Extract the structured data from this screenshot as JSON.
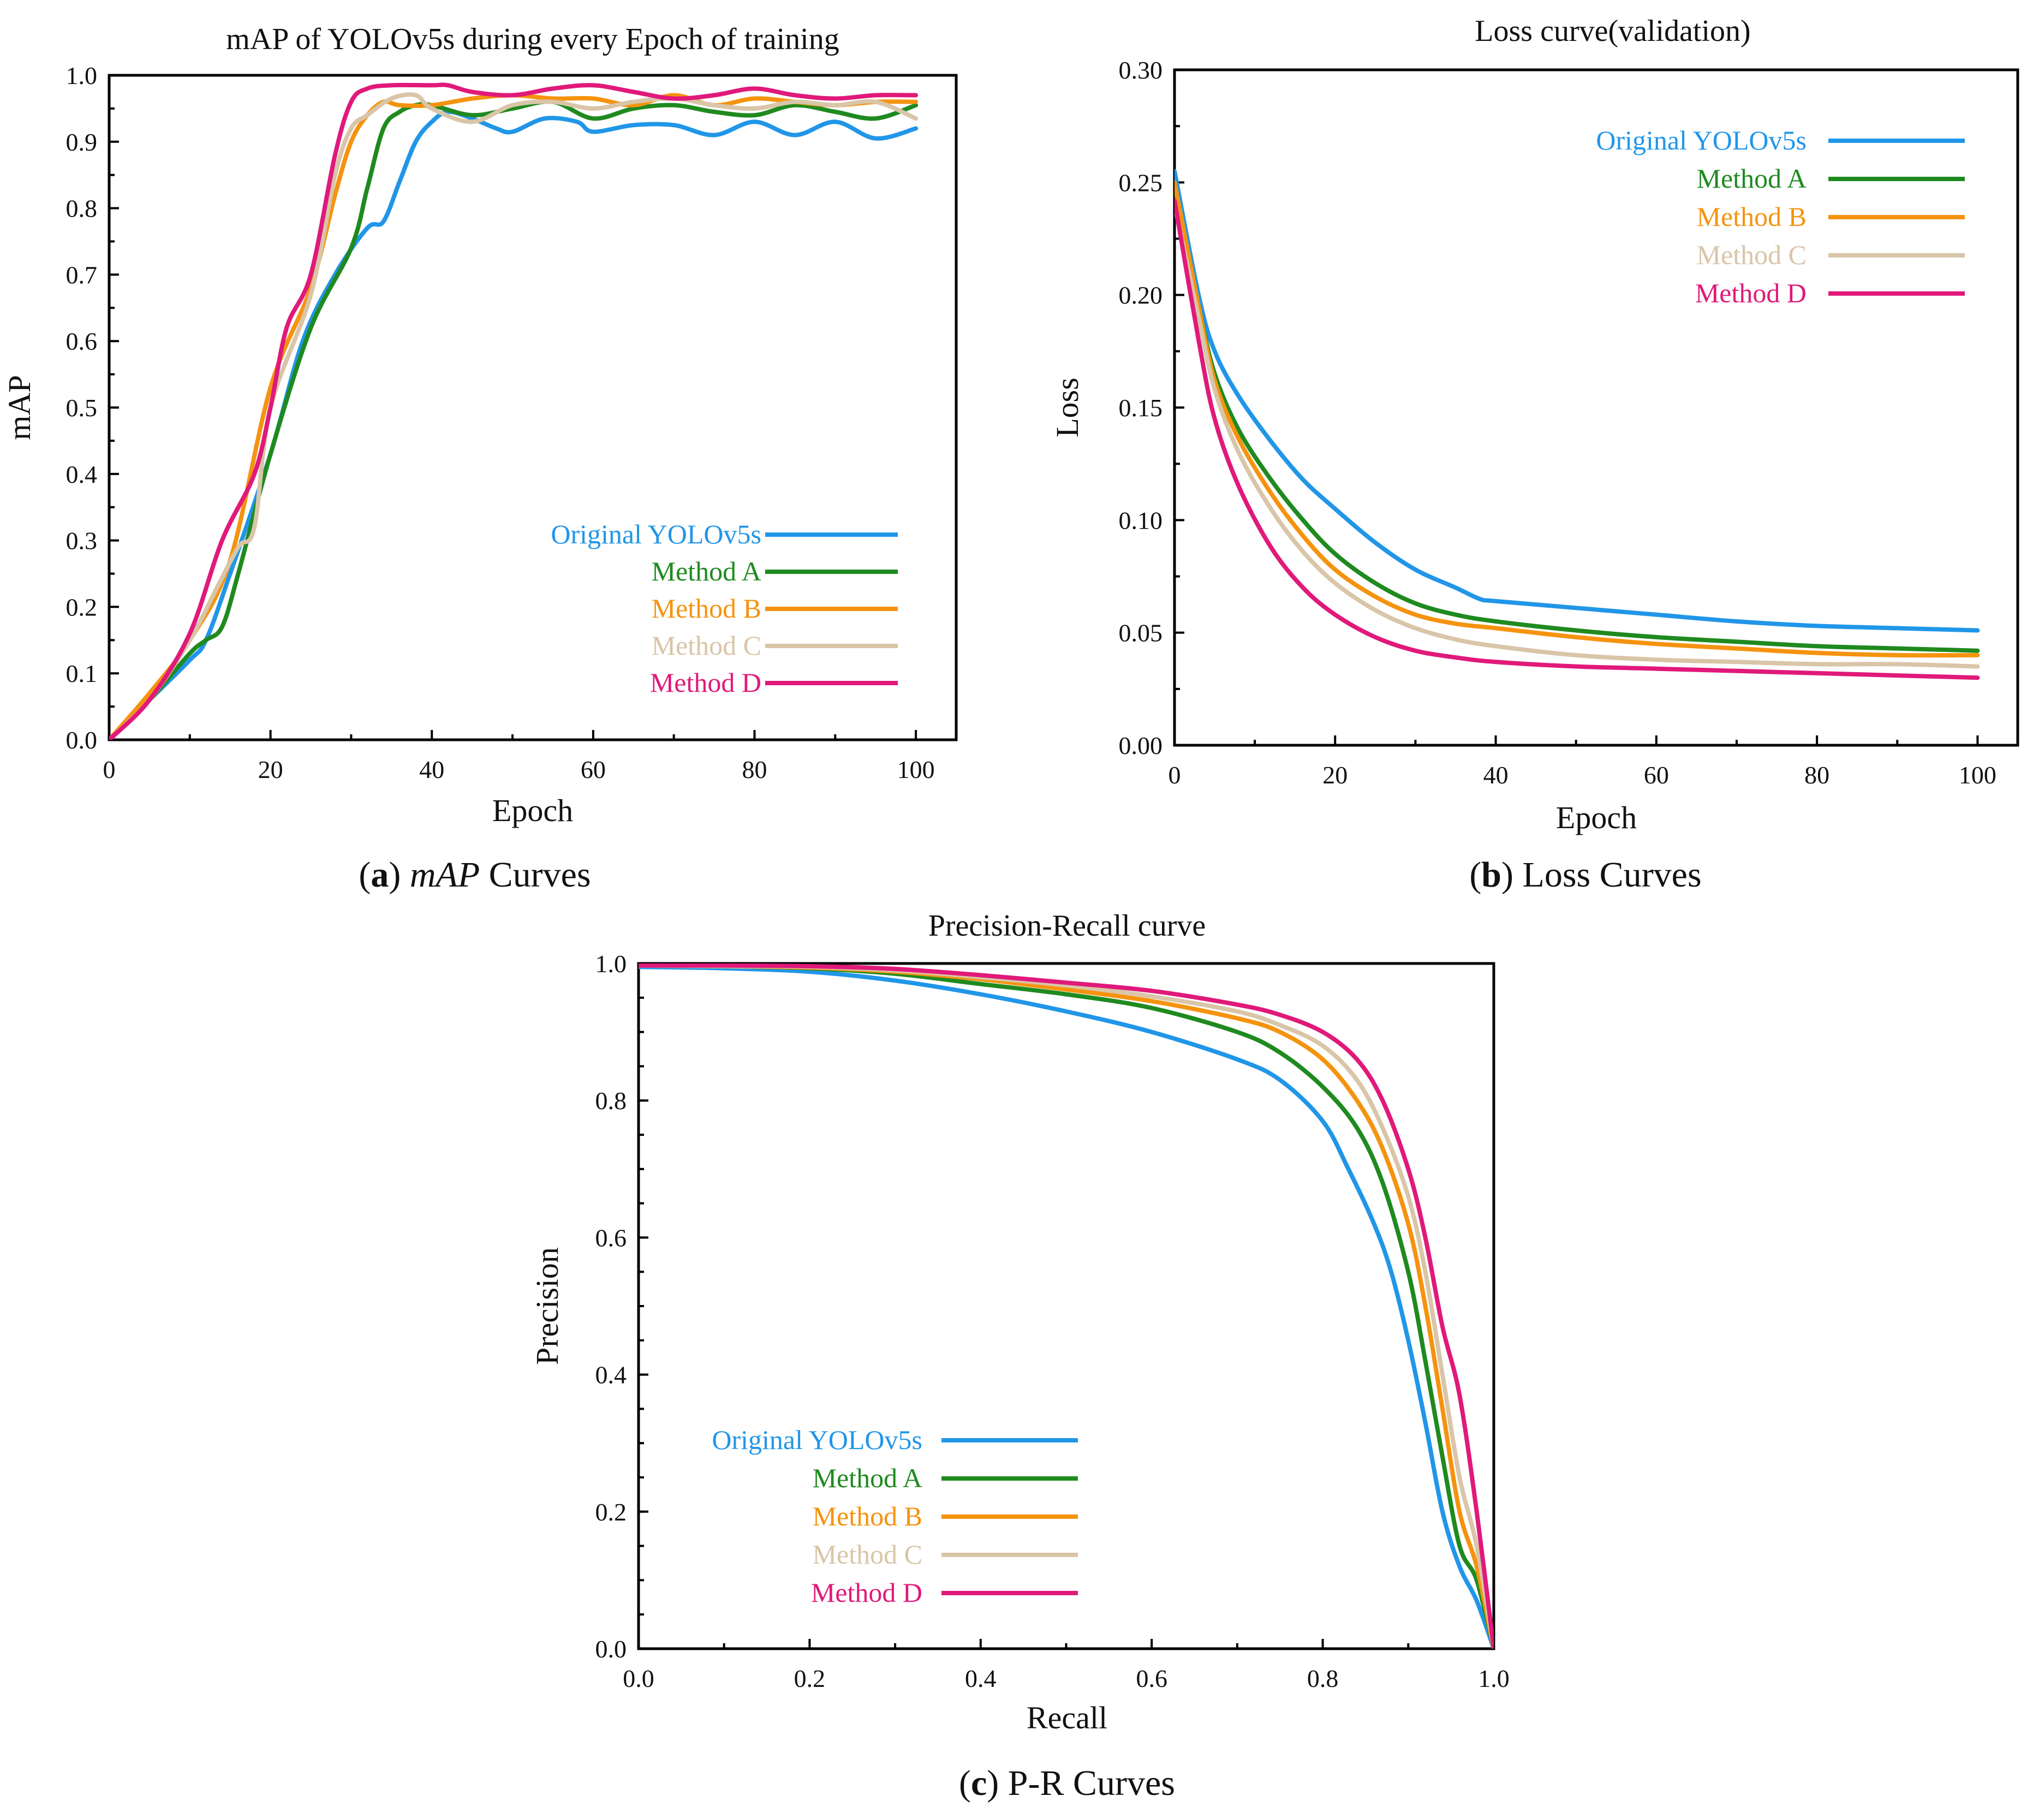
{
  "chart_data": [
    {
      "id": "map",
      "type": "line",
      "title": "mAP of YOLOv5s during every Epoch of training",
      "xlabel": "Epoch",
      "ylabel": "mAP",
      "xlim": [
        0,
        105
      ],
      "ylim": [
        0,
        1.0
      ],
      "xticks": [
        0,
        20,
        40,
        60,
        80,
        100
      ],
      "yticks": [
        0.0,
        0.1,
        0.2,
        0.3,
        0.4,
        0.5,
        0.6,
        0.7,
        0.8,
        0.9,
        1.0
      ],
      "tick_decimals_x": 0,
      "tick_decimals_y": 1,
      "legend_position": "bottom-right",
      "caption": {
        "letter": "a",
        "text": "mAP",
        "suffix": " Curves"
      },
      "series": [
        {
          "name": "Original YOLOv5s",
          "color": "#2196e8",
          "x": [
            0,
            5,
            10,
            12,
            15,
            20,
            24,
            28,
            32,
            34,
            36,
            38,
            40,
            42,
            45,
            48,
            50,
            54,
            58,
            60,
            65,
            70,
            75,
            80,
            85,
            90,
            95,
            100
          ],
          "y": [
            0,
            0.06,
            0.12,
            0.15,
            0.25,
            0.43,
            0.6,
            0.7,
            0.77,
            0.78,
            0.84,
            0.9,
            0.93,
            0.945,
            0.935,
            0.92,
            0.915,
            0.935,
            0.93,
            0.915,
            0.925,
            0.925,
            0.91,
            0.93,
            0.91,
            0.93,
            0.905,
            0.92
          ]
        },
        {
          "name": "Method A",
          "color": "#1f8a1f",
          "x": [
            0,
            5,
            10,
            12,
            14,
            16,
            20,
            25,
            30,
            32,
            34,
            36,
            38,
            40,
            45,
            50,
            55,
            60,
            65,
            70,
            75,
            80,
            85,
            90,
            95,
            100
          ],
          "y": [
            0,
            0.06,
            0.13,
            0.15,
            0.17,
            0.25,
            0.43,
            0.62,
            0.74,
            0.83,
            0.92,
            0.945,
            0.955,
            0.955,
            0.94,
            0.95,
            0.96,
            0.935,
            0.95,
            0.955,
            0.945,
            0.94,
            0.955,
            0.945,
            0.935,
            0.955
          ]
        },
        {
          "name": "Method B",
          "color": "#f5930f",
          "x": [
            0,
            5,
            10,
            15,
            20,
            25,
            28,
            30,
            32,
            34,
            36,
            40,
            45,
            50,
            55,
            60,
            65,
            70,
            75,
            80,
            85,
            90,
            95,
            100
          ],
          "y": [
            0,
            0.07,
            0.15,
            0.27,
            0.53,
            0.68,
            0.82,
            0.9,
            0.94,
            0.96,
            0.955,
            0.955,
            0.965,
            0.97,
            0.965,
            0.965,
            0.955,
            0.97,
            0.955,
            0.965,
            0.96,
            0.955,
            0.96,
            0.96
          ]
        },
        {
          "name": "Method C",
          "color": "#d9c5a8",
          "x": [
            0,
            5,
            10,
            13,
            16,
            18,
            20,
            25,
            28,
            30,
            32,
            35,
            38,
            40,
            45,
            50,
            55,
            60,
            65,
            70,
            75,
            80,
            85,
            90,
            95,
            100
          ],
          "y": [
            0,
            0.06,
            0.15,
            0.22,
            0.29,
            0.32,
            0.5,
            0.67,
            0.85,
            0.92,
            0.94,
            0.965,
            0.97,
            0.95,
            0.93,
            0.955,
            0.96,
            0.95,
            0.96,
            0.965,
            0.955,
            0.95,
            0.96,
            0.955,
            0.96,
            0.935
          ]
        },
        {
          "name": "Method D",
          "color": "#e0197a",
          "x": [
            0,
            5,
            10,
            14,
            18,
            20,
            22,
            25,
            28,
            30,
            32,
            35,
            40,
            42,
            45,
            50,
            55,
            60,
            65,
            70,
            75,
            80,
            85,
            90,
            95,
            100
          ],
          "y": [
            0,
            0.06,
            0.16,
            0.3,
            0.4,
            0.5,
            0.62,
            0.7,
            0.88,
            0.96,
            0.98,
            0.985,
            0.985,
            0.985,
            0.975,
            0.97,
            0.98,
            0.985,
            0.975,
            0.965,
            0.97,
            0.98,
            0.97,
            0.965,
            0.97,
            0.97
          ]
        }
      ]
    },
    {
      "id": "loss",
      "type": "line",
      "title": "Loss curve(validation)",
      "xlabel": "Epoch",
      "ylabel": "Loss",
      "xlim": [
        0,
        105
      ],
      "ylim": [
        0,
        0.3
      ],
      "xticks": [
        0,
        20,
        40,
        60,
        80,
        100
      ],
      "yticks": [
        0.0,
        0.05,
        0.1,
        0.15,
        0.2,
        0.25,
        0.3
      ],
      "tick_decimals_x": 0,
      "tick_decimals_y": 2,
      "legend_position": "top-right",
      "caption": {
        "letter": "b",
        "text": "",
        "suffix": " Loss Curves"
      },
      "series": [
        {
          "name": "Original YOLOv5s",
          "color": "#2196e8",
          "x": [
            0,
            3,
            5,
            8,
            12,
            16,
            20,
            25,
            30,
            35,
            38,
            40,
            50,
            60,
            70,
            80,
            90,
            100
          ],
          "y": [
            0.255,
            0.2,
            0.175,
            0.155,
            0.135,
            0.118,
            0.105,
            0.09,
            0.078,
            0.07,
            0.065,
            0.064,
            0.061,
            0.058,
            0.055,
            0.053,
            0.052,
            0.051
          ]
        },
        {
          "name": "Method A",
          "color": "#1f8a1f",
          "x": [
            0,
            3,
            5,
            8,
            12,
            16,
            20,
            25,
            30,
            35,
            40,
            50,
            60,
            70,
            80,
            90,
            100
          ],
          "y": [
            0.245,
            0.195,
            0.165,
            0.14,
            0.118,
            0.1,
            0.085,
            0.072,
            0.063,
            0.058,
            0.055,
            0.051,
            0.048,
            0.046,
            0.044,
            0.043,
            0.042
          ]
        },
        {
          "name": "Method B",
          "color": "#f5930f",
          "x": [
            0,
            3,
            5,
            8,
            12,
            16,
            20,
            25,
            30,
            35,
            40,
            50,
            60,
            70,
            80,
            90,
            100
          ],
          "y": [
            0.25,
            0.195,
            0.162,
            0.136,
            0.112,
            0.093,
            0.078,
            0.066,
            0.058,
            0.054,
            0.052,
            0.048,
            0.045,
            0.043,
            0.041,
            0.04,
            0.04
          ]
        },
        {
          "name": "Method C",
          "color": "#d9c5a8",
          "x": [
            0,
            3,
            5,
            8,
            12,
            16,
            20,
            25,
            30,
            35,
            40,
            50,
            60,
            70,
            80,
            90,
            100
          ],
          "y": [
            0.24,
            0.19,
            0.158,
            0.13,
            0.105,
            0.086,
            0.072,
            0.06,
            0.052,
            0.047,
            0.044,
            0.04,
            0.038,
            0.037,
            0.036,
            0.036,
            0.035
          ]
        },
        {
          "name": "Method D",
          "color": "#e0197a",
          "x": [
            0,
            3,
            5,
            8,
            12,
            16,
            20,
            25,
            30,
            35,
            40,
            50,
            60,
            70,
            80,
            90,
            100
          ],
          "y": [
            0.242,
            0.18,
            0.145,
            0.115,
            0.088,
            0.07,
            0.058,
            0.048,
            0.042,
            0.039,
            0.037,
            0.035,
            0.034,
            0.033,
            0.032,
            0.031,
            0.03
          ]
        }
      ]
    },
    {
      "id": "pr",
      "type": "line",
      "title": "Precision-Recall curve",
      "xlabel": "Recall",
      "ylabel": "Precision",
      "xlim": [
        0,
        1.0
      ],
      "ylim": [
        0,
        1.0
      ],
      "xticks": [
        0.0,
        0.2,
        0.4,
        0.6,
        0.8,
        1.0
      ],
      "yticks": [
        0.0,
        0.2,
        0.4,
        0.6,
        0.8,
        1.0
      ],
      "minor_y_step": 0.05,
      "tick_decimals_x": 1,
      "tick_decimals_y": 1,
      "legend_position": "bottom-left",
      "caption": {
        "letter": "c",
        "text": "",
        "suffix": " P-R Curves"
      },
      "series": [
        {
          "name": "Original YOLOv5s",
          "color": "#2196e8",
          "x": [
            0,
            0.1,
            0.2,
            0.3,
            0.4,
            0.5,
            0.6,
            0.7,
            0.75,
            0.8,
            0.83,
            0.86,
            0.88,
            0.9,
            0.92,
            0.94,
            0.96,
            0.98,
            1.0
          ],
          "y": [
            0.995,
            0.993,
            0.988,
            0.975,
            0.955,
            0.93,
            0.9,
            0.86,
            0.83,
            0.77,
            0.7,
            0.62,
            0.55,
            0.45,
            0.33,
            0.2,
            0.12,
            0.07,
            0.0
          ]
        },
        {
          "name": "Method A",
          "color": "#1f8a1f",
          "x": [
            0,
            0.1,
            0.2,
            0.3,
            0.4,
            0.5,
            0.6,
            0.7,
            0.75,
            0.8,
            0.84,
            0.87,
            0.9,
            0.92,
            0.94,
            0.96,
            0.98,
            1.0
          ],
          "y": [
            0.997,
            0.996,
            0.993,
            0.985,
            0.97,
            0.955,
            0.935,
            0.9,
            0.87,
            0.82,
            0.76,
            0.68,
            0.55,
            0.42,
            0.28,
            0.15,
            0.1,
            0.0
          ]
        },
        {
          "name": "Method B",
          "color": "#f5930f",
          "x": [
            0,
            0.1,
            0.2,
            0.3,
            0.4,
            0.5,
            0.6,
            0.7,
            0.75,
            0.8,
            0.84,
            0.87,
            0.9,
            0.92,
            0.94,
            0.96,
            0.98,
            1.0
          ],
          "y": [
            0.997,
            0.996,
            0.994,
            0.988,
            0.977,
            0.962,
            0.945,
            0.92,
            0.9,
            0.86,
            0.8,
            0.73,
            0.62,
            0.5,
            0.35,
            0.2,
            0.12,
            0.0
          ]
        },
        {
          "name": "Method C",
          "color": "#d9c5a8",
          "x": [
            0,
            0.1,
            0.2,
            0.3,
            0.4,
            0.5,
            0.6,
            0.7,
            0.75,
            0.8,
            0.84,
            0.87,
            0.9,
            0.92,
            0.94,
            0.96,
            0.98,
            1.0
          ],
          "y": [
            0.997,
            0.996,
            0.995,
            0.99,
            0.98,
            0.968,
            0.952,
            0.93,
            0.91,
            0.88,
            0.83,
            0.76,
            0.66,
            0.55,
            0.4,
            0.25,
            0.15,
            0.0
          ]
        },
        {
          "name": "Method D",
          "color": "#e0197a",
          "x": [
            0,
            0.1,
            0.2,
            0.3,
            0.4,
            0.5,
            0.6,
            0.7,
            0.75,
            0.8,
            0.84,
            0.87,
            0.9,
            0.92,
            0.94,
            0.96,
            0.98,
            1.0
          ],
          "y": [
            0.997,
            0.997,
            0.996,
            0.992,
            0.983,
            0.972,
            0.96,
            0.94,
            0.925,
            0.9,
            0.86,
            0.8,
            0.7,
            0.6,
            0.47,
            0.37,
            0.2,
            0.0
          ]
        }
      ]
    }
  ]
}
